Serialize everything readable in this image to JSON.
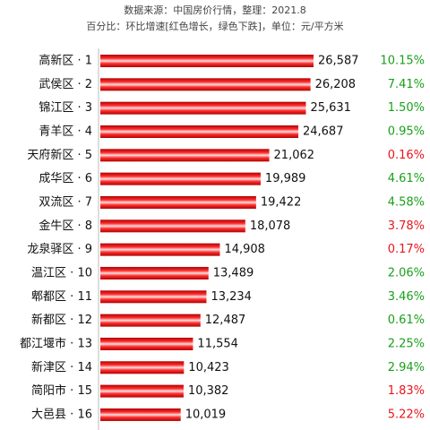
{
  "chart_data": {
    "type": "barh",
    "subtitle": "数据来源：中国房价行情，整理：2021.8",
    "note": "百分比：环比增速[红色增长，绿色下跌]，单位：元/平方米",
    "categories": [
      "高新区 · 1",
      "武侯区 · 2",
      "锦江区 · 3",
      "青羊区 · 4",
      "天府新区 · 5",
      "成华区 · 6",
      "双流区 · 7",
      "金牛区 · 8",
      "龙泉驿区 · 9",
      "温江区 · 10",
      "郫都区 · 11",
      "新都区 · 12",
      "都江堰市 · 13",
      "新津区 · 14",
      "简阳市 · 15",
      "大邑县 · 16"
    ],
    "color": "#e8161b",
    "values": [
      26587,
      26208,
      25631,
      24687,
      21062,
      19989,
      19422,
      18078,
      14908,
      13489,
      13234,
      12487,
      11554,
      10423,
      10382,
      10019
    ],
    "value_labels": [
      "26,587",
      "26,208",
      "25,631",
      "24,687",
      "21,062",
      "19,989",
      "19,422",
      "18,078",
      "14,908",
      "13,489",
      "13,234",
      "12,487",
      "11,554",
      "10,423",
      "10,382",
      "10,019"
    ],
    "changes": {
      "values": [
        10.15,
        7.41,
        1.5,
        0.95,
        0.16,
        4.61,
        4.58,
        3.78,
        0.17,
        2.06,
        3.46,
        0.61,
        2.25,
        2.94,
        1.83,
        5.22
      ],
      "value_labels": [
        "10.15%",
        "7.41%",
        "1.50%",
        "0.95%",
        "0.16%",
        "4.61%",
        "4.58%",
        "3.78%",
        "0.17%",
        "2.06%",
        "3.46%",
        "0.61%",
        "2.25%",
        "2.94%",
        "1.83%",
        "5.22%"
      ],
      "colors": [
        "#1aa01a",
        "#1aa01a",
        "#1aa01a",
        "#1aa01a",
        "#e8161b",
        "#1aa01a",
        "#1aa01a",
        "#e8161b",
        "#e8161b",
        "#1aa01a",
        "#1aa01a",
        "#1aa01a",
        "#1aa01a",
        "#1aa01a",
        "#e8161b",
        "#e8161b"
      ]
    }
  }
}
